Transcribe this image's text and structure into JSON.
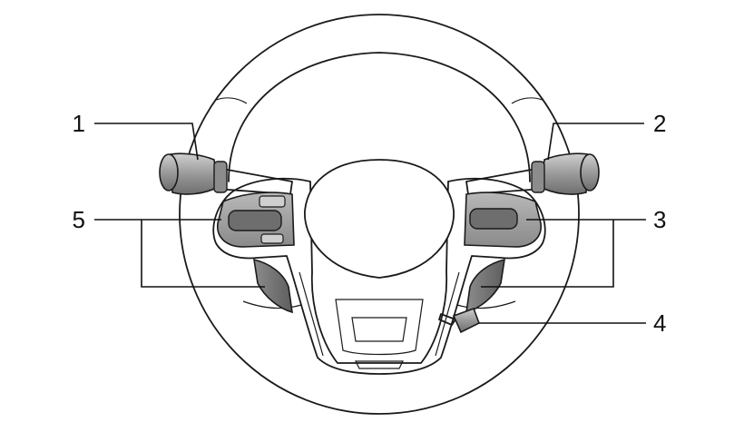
{
  "callouts": [
    {
      "id": "1",
      "label": "1"
    },
    {
      "id": "2",
      "label": "2"
    },
    {
      "id": "3",
      "label": "3"
    },
    {
      "id": "4",
      "label": "4"
    },
    {
      "id": "5",
      "label": "5"
    }
  ],
  "colors": {
    "line": "#1a1a1a",
    "control_fill": "#a6a6a6",
    "control_dark": "#7a7a7a",
    "background": "#ffffff"
  }
}
